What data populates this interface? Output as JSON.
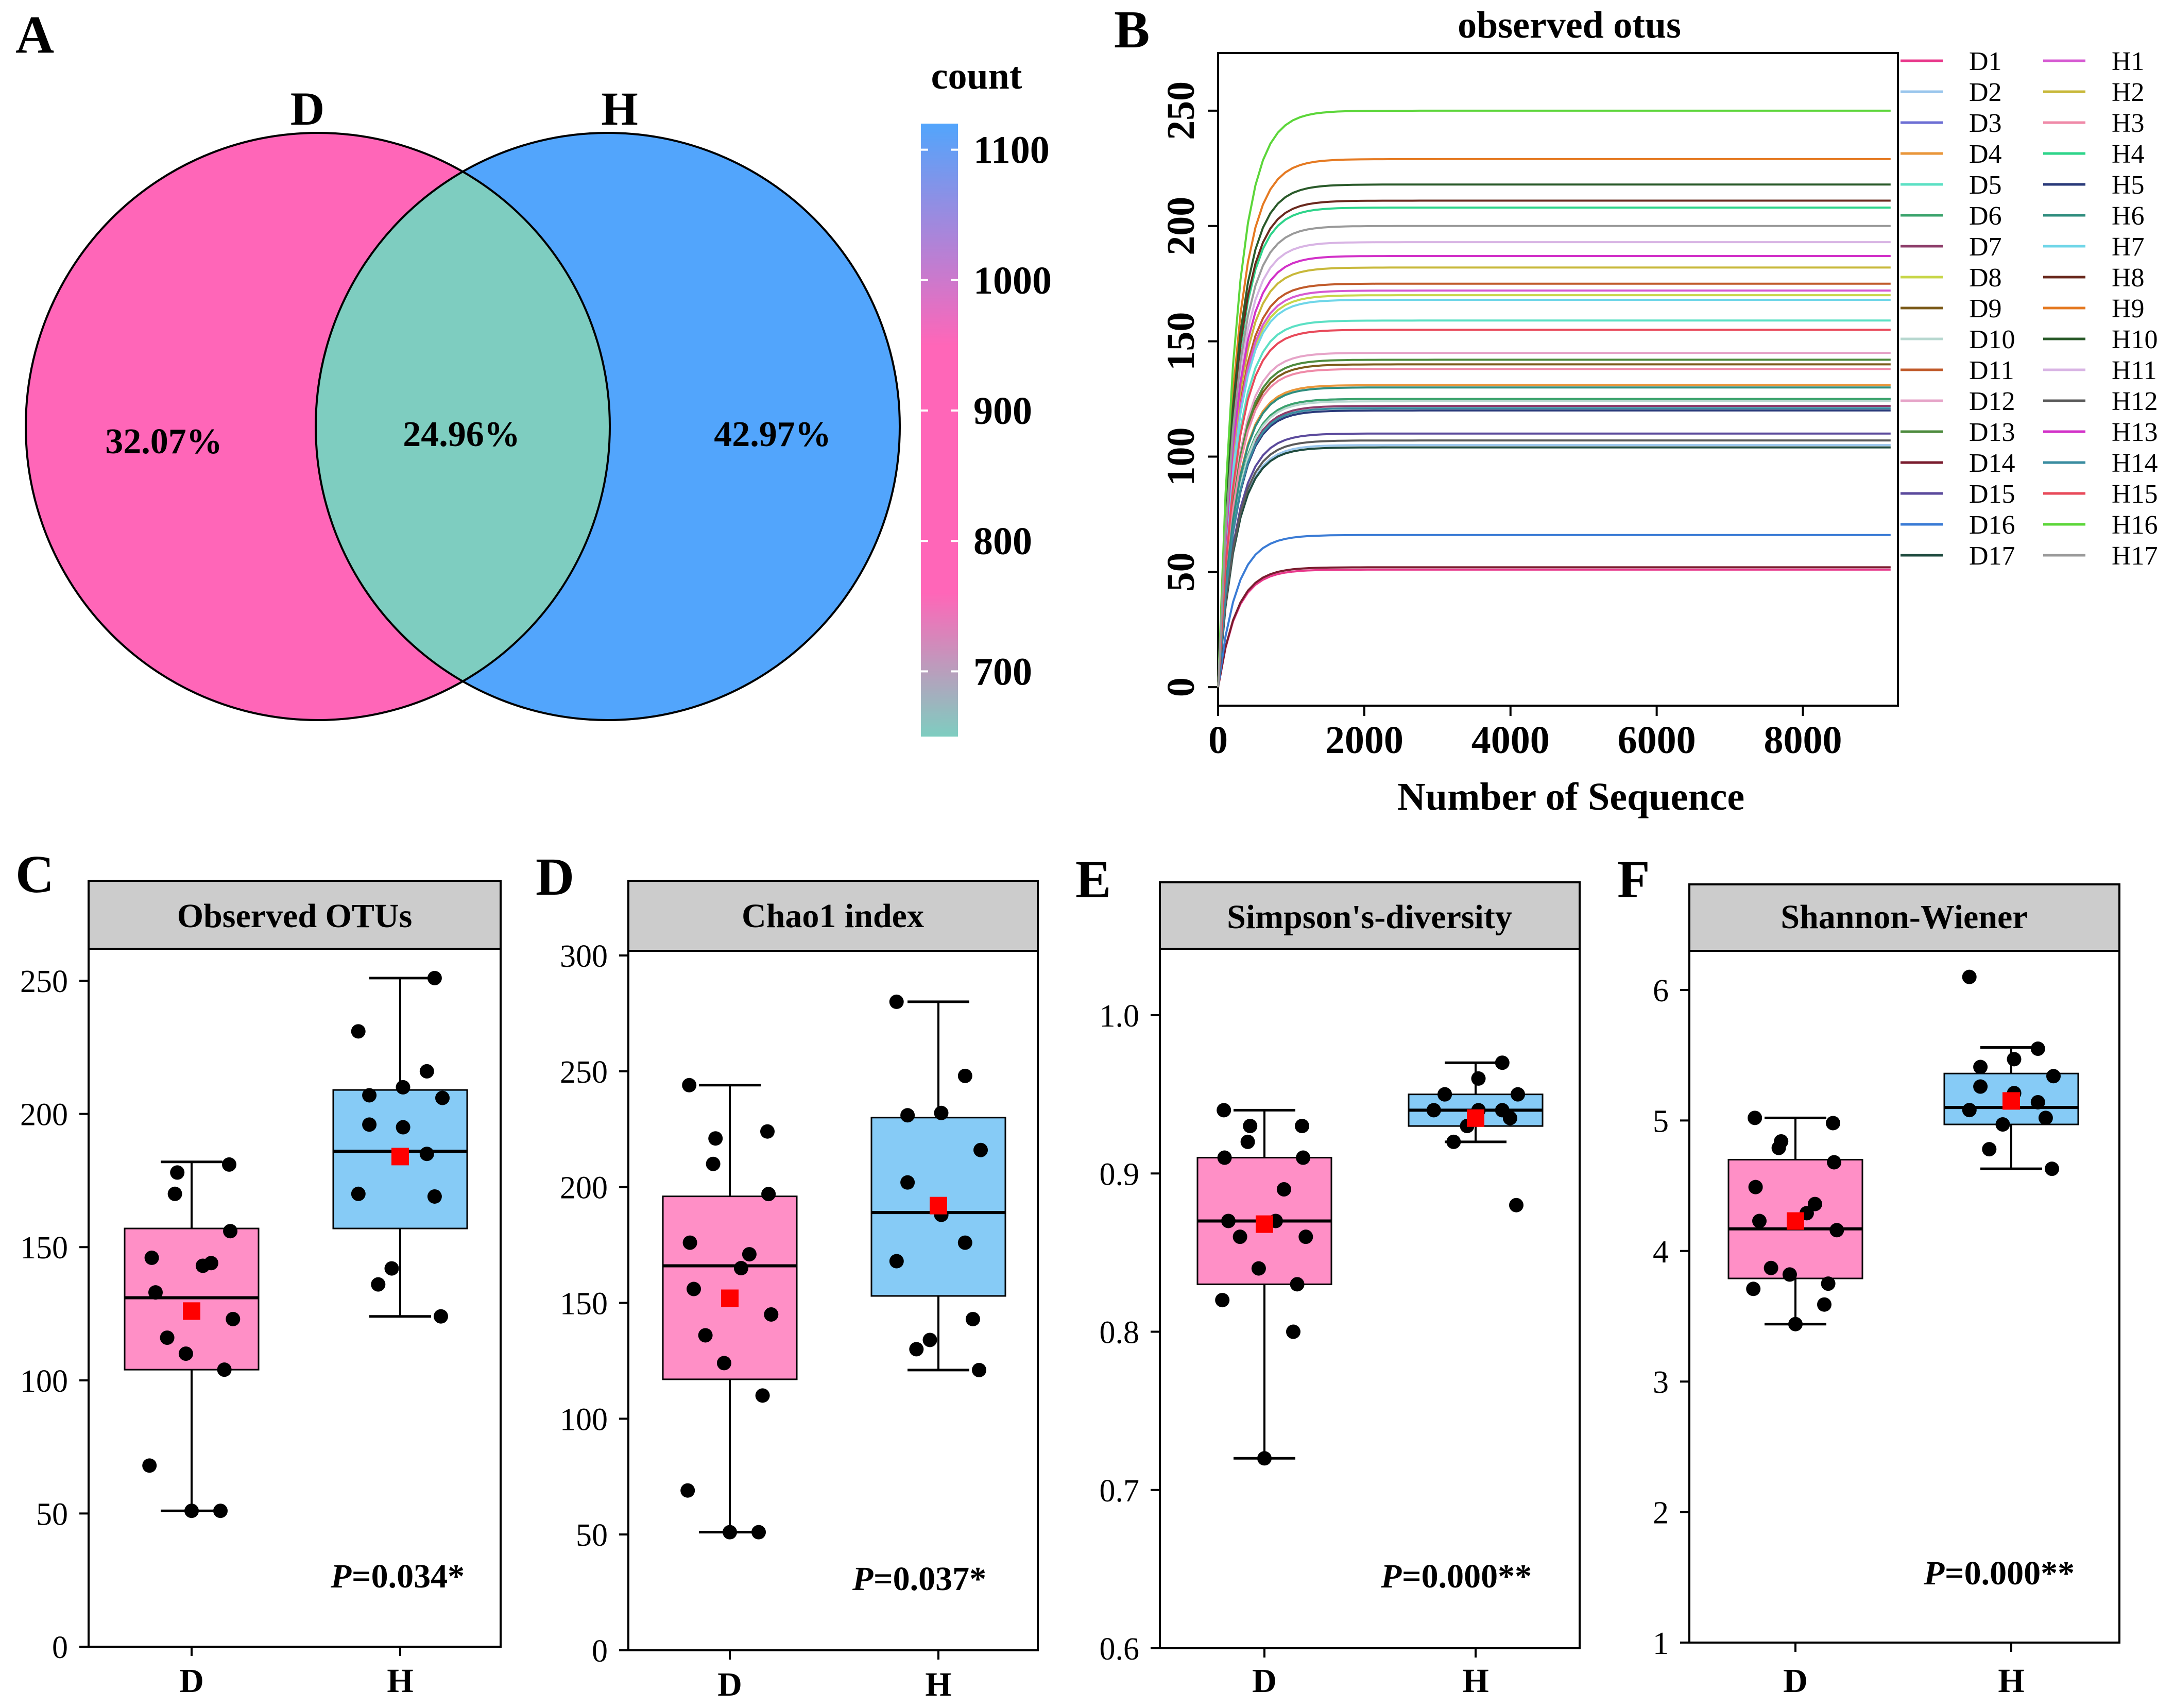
{
  "chart_data": [
    {
      "type": "venn",
      "panel_label": "A",
      "sets": [
        "D",
        "H"
      ],
      "regions": [
        {
          "region": "D only",
          "label": "32.07%",
          "color": "#ff66b8"
        },
        {
          "region": "D and H",
          "label": "24.96%",
          "color": "#7ecdc0"
        },
        {
          "region": "H only",
          "label": "42.97%",
          "color": "#52a5fc"
        }
      ],
      "colorbar": {
        "title": "count",
        "range": [
          650,
          1120
        ],
        "ticks": [
          700,
          800,
          900,
          1000,
          1100
        ],
        "tick_labels": [
          "700",
          "800",
          "900",
          "1000",
          "1100"
        ],
        "stops": [
          {
            "value": 650,
            "color": "#7ecdc0"
          },
          {
            "value": 760,
            "color": "#ff66b8"
          },
          {
            "value": 950,
            "color": "#ff66b8"
          },
          {
            "value": 1120,
            "color": "#52a5fc"
          }
        ]
      }
    },
    {
      "type": "line",
      "panel_label": "B",
      "title": "observed otus",
      "xlabel": "Number of Sequence",
      "ylabel": "",
      "xlim": [
        0,
        9300
      ],
      "ylim": [
        -8,
        275
      ],
      "xticks": [
        0,
        2000,
        4000,
        6000,
        8000
      ],
      "xtick_labels": [
        "0",
        "2000",
        "4000",
        "6000",
        "8000"
      ],
      "yticks": [
        0,
        50,
        100,
        150,
        200,
        250
      ],
      "ytick_labels": [
        "0",
        "50",
        "100",
        "150",
        "200",
        "250"
      ],
      "x_max": 9200,
      "series": [
        {
          "name": "D1",
          "color": "#e8388b",
          "final": 51
        },
        {
          "name": "D2",
          "color": "#9ac6ec",
          "final": 105
        },
        {
          "name": "D3",
          "color": "#6d6fd4",
          "final": 125
        },
        {
          "name": "D4",
          "color": "#e9963a",
          "final": 131
        },
        {
          "name": "D5",
          "color": "#5ce0c4",
          "final": 159
        },
        {
          "name": "D6",
          "color": "#3aa36c",
          "final": 125
        },
        {
          "name": "D7",
          "color": "#8d3d6a",
          "final": 122
        },
        {
          "name": "D8",
          "color": "#c8d64a",
          "final": 170
        },
        {
          "name": "D9",
          "color": "#7c5b1a",
          "final": 140
        },
        {
          "name": "D10",
          "color": "#b8d8d0",
          "final": 124
        },
        {
          "name": "D11",
          "color": "#c05a2a",
          "final": 175
        },
        {
          "name": "D12",
          "color": "#e6a4c8",
          "final": 145
        },
        {
          "name": "D13",
          "color": "#4e8b3e",
          "final": 142
        },
        {
          "name": "D14",
          "color": "#7a1c2e",
          "final": 52
        },
        {
          "name": "D15",
          "color": "#5b4a9c",
          "final": 110
        },
        {
          "name": "D16",
          "color": "#3a7bd5",
          "final": 66
        },
        {
          "name": "D17",
          "color": "#1e4a3e",
          "final": 104
        },
        {
          "name": "H1",
          "color": "#d65ad2",
          "final": 172
        },
        {
          "name": "H2",
          "color": "#c8b83a",
          "final": 182
        },
        {
          "name": "H3",
          "color": "#ef8aa8",
          "final": 138
        },
        {
          "name": "H4",
          "color": "#2ed48a",
          "final": 208
        },
        {
          "name": "H5",
          "color": "#2a3a7a",
          "final": 120
        },
        {
          "name": "H6",
          "color": "#2f8d7e",
          "final": 130
        },
        {
          "name": "H7",
          "color": "#6fd6e8",
          "final": 168
        },
        {
          "name": "H8",
          "color": "#6a2a1e",
          "final": 211
        },
        {
          "name": "H9",
          "color": "#e57a22",
          "final": 229
        },
        {
          "name": "H10",
          "color": "#2a5a2a",
          "final": 218
        },
        {
          "name": "H11",
          "color": "#d8b4e4",
          "final": 193
        },
        {
          "name": "H12",
          "color": "#5a5a5a",
          "final": 107
        },
        {
          "name": "H13",
          "color": "#d232c8",
          "final": 187
        },
        {
          "name": "H14",
          "color": "#3a8ca0",
          "final": 121
        },
        {
          "name": "H15",
          "color": "#e84a5a",
          "final": 155
        },
        {
          "name": "H16",
          "color": "#5cd63a",
          "final": 250
        },
        {
          "name": "H17",
          "color": "#9a9a9a",
          "final": 200
        }
      ]
    },
    {
      "type": "box",
      "panel_label": "C",
      "title": "Observed OTUs",
      "ylim": [
        0,
        262
      ],
      "yticks": [
        0,
        50,
        100,
        150,
        200,
        250
      ],
      "ytick_labels": [
        "0",
        "50",
        "100",
        "150",
        "200",
        "250"
      ],
      "categories": [
        "D",
        "H"
      ],
      "p_value": "=0.034*",
      "groups": [
        {
          "name": "D",
          "color": "#ff8fc6",
          "q1": 104,
          "median": 131,
          "q3": 157,
          "whisker_low": 51,
          "whisker_high": 182,
          "mean": 126,
          "points": [
            51,
            51,
            68,
            104,
            110,
            116,
            123,
            133,
            143,
            144,
            146,
            156,
            170,
            178,
            181
          ]
        },
        {
          "name": "H",
          "color": "#86cbf6",
          "q1": 157,
          "median": 186,
          "q3": 209,
          "whisker_low": 124,
          "whisker_high": 251,
          "mean": 184,
          "points": [
            124,
            136,
            142,
            169,
            170,
            185,
            195,
            196,
            206,
            207,
            210,
            216,
            231,
            251
          ]
        }
      ]
    },
    {
      "type": "box",
      "panel_label": "D",
      "title": "Chao1 index",
      "ylim": [
        0,
        302
      ],
      "yticks": [
        0,
        50,
        100,
        150,
        200,
        250,
        300
      ],
      "ytick_labels": [
        "0",
        "50",
        "100",
        "150",
        "200",
        "250",
        "300"
      ],
      "categories": [
        "D",
        "H"
      ],
      "p_value": "=0.037*",
      "groups": [
        {
          "name": "D",
          "color": "#ff8fc6",
          "q1": 117,
          "median": 166,
          "q3": 196,
          "whisker_low": 51,
          "whisker_high": 244,
          "mean": 152,
          "points": [
            51,
            51,
            69,
            110,
            124,
            136,
            145,
            156,
            165,
            171,
            176,
            197,
            210,
            221,
            224,
            244
          ]
        },
        {
          "name": "H",
          "color": "#86cbf6",
          "q1": 153,
          "median": 189,
          "q3": 230,
          "whisker_low": 121,
          "whisker_high": 280,
          "mean": 192,
          "points": [
            121,
            130,
            134,
            143,
            168,
            176,
            188,
            202,
            216,
            231,
            232,
            248,
            280
          ]
        }
      ]
    },
    {
      "type": "box",
      "panel_label": "E",
      "title": "Simpson's-diversity",
      "ylim": [
        0.6,
        1.042
      ],
      "yticks": [
        0.6,
        0.7,
        0.8,
        0.9,
        1.0
      ],
      "ytick_labels": [
        "0.6",
        "0.7",
        "0.8",
        "0.9",
        "1.0"
      ],
      "categories": [
        "D",
        "H"
      ],
      "p_value": "=0.000**",
      "groups": [
        {
          "name": "D",
          "color": "#ff8fc6",
          "q1": 0.83,
          "median": 0.87,
          "q3": 0.91,
          "whisker_low": 0.72,
          "whisker_high": 0.94,
          "mean": 0.868,
          "points": [
            0.72,
            0.8,
            0.82,
            0.83,
            0.84,
            0.86,
            0.86,
            0.87,
            0.87,
            0.89,
            0.91,
            0.91,
            0.92,
            0.93,
            0.93,
            0.94
          ]
        },
        {
          "name": "H",
          "color": "#86cbf6",
          "q1": 0.93,
          "median": 0.94,
          "q3": 0.95,
          "whisker_low": 0.92,
          "whisker_high": 0.97,
          "mean": 0.935,
          "points": [
            0.88,
            0.92,
            0.93,
            0.935,
            0.94,
            0.94,
            0.94,
            0.95,
            0.95,
            0.95,
            0.96,
            0.97
          ]
        }
      ]
    },
    {
      "type": "box",
      "panel_label": "F",
      "title": "Shannon-Wiener",
      "ylim": [
        1,
        6.3
      ],
      "yticks": [
        1,
        2,
        3,
        4,
        5,
        6
      ],
      "ytick_labels": [
        "1",
        "2",
        "3",
        "4",
        "5",
        "6"
      ],
      "categories": [
        "D",
        "H"
      ],
      "p_value": "=0.000**",
      "groups": [
        {
          "name": "D",
          "color": "#ff8fc6",
          "q1": 3.79,
          "median": 4.17,
          "q3": 4.7,
          "whisker_low": 3.44,
          "whisker_high": 5.02,
          "mean": 4.23,
          "points": [
            3.44,
            3.59,
            3.71,
            3.75,
            3.82,
            3.87,
            4.16,
            4.23,
            4.29,
            4.36,
            4.49,
            4.68,
            4.79,
            4.84,
            4.98,
            5.02
          ]
        },
        {
          "name": "H",
          "color": "#86cbf6",
          "q1": 4.97,
          "median": 5.1,
          "q3": 5.36,
          "whisker_low": 4.63,
          "whisker_high": 5.56,
          "mean": 5.15,
          "points": [
            4.63,
            4.78,
            4.97,
            5.02,
            5.08,
            5.14,
            5.21,
            5.26,
            5.34,
            5.41,
            5.47,
            5.55,
            6.1
          ]
        }
      ]
    }
  ]
}
